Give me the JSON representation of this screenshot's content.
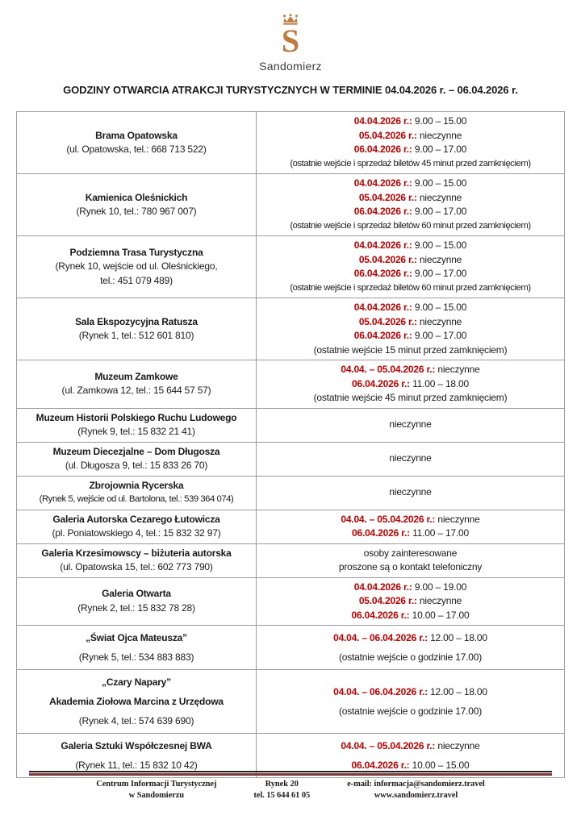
{
  "logo": {
    "letter": "S",
    "caption": "Sandomierz"
  },
  "title": "GODZINY OTWARCIA ATRAKCJI TURYSTYCZNYCH W TERMINIE 04.04.2026 r. – 06.04.2026 r.",
  "colors": {
    "red": "#C00000",
    "border": "#9C9C9C",
    "logo": "#C0793D",
    "rule": "#7E3A3A"
  },
  "table": {
    "rows": [
      {
        "left": [
          {
            "text": "Brama Opatowska",
            "bold": true
          },
          {
            "text": "(ul. Opatowska, tel.: 668 713 522)"
          }
        ],
        "right": [
          {
            "date": "04.04.2026 r.:",
            "text": "9.00 – 15.00"
          },
          {
            "date": "05.04.2026 r.:",
            "text": "nieczynne"
          },
          {
            "date": "06.04.2026 r.:",
            "text": "9.00 – 17.00"
          },
          {
            "text": "(ostatnie wejście i sprzedaż biletów 45 minut przed zamknięciem)"
          }
        ]
      },
      {
        "left": [
          {
            "text": "Kamienica Oleśnickich",
            "bold": true
          },
          {
            "text": "(Rynek 10, tel.: 780 967 007)"
          }
        ],
        "right": [
          {
            "date": "04.04.2026 r.:",
            "text": "9.00 – 15.00"
          },
          {
            "date": "05.04.2026 r.:",
            "text": "nieczynne"
          },
          {
            "date": "06.04.2026 r.:",
            "text": "9.00 – 17.00"
          },
          {
            "text": "(ostatnie wejście i sprzedaż biletów 60 minut przed zamknięciem)"
          }
        ]
      },
      {
        "left": [
          {
            "text": "Podziemna Trasa Turystyczna",
            "bold": true
          },
          {
            "text": "(Rynek 10, wejście od ul. Oleśnickiego,"
          },
          {
            "text": "tel.: 451 079 489)"
          }
        ],
        "right": [
          {
            "date": "04.04.2026 r.:",
            "text": "9.00 – 15.00"
          },
          {
            "date": "05.04.2026 r.:",
            "text": "nieczynne"
          },
          {
            "date": "06.04.2026 r.:",
            "text": "9.00 – 17.00"
          },
          {
            "text": "(ostatnie wejście i sprzedaż biletów 60 minut przed zamknięciem)"
          }
        ]
      },
      {
        "left": [
          {
            "text": "Sala Ekspozycyjna Ratusza",
            "bold": true
          },
          {
            "text": "(Rynek 1, tel.: 512 601 810)"
          }
        ],
        "right": [
          {
            "date": "04.04.2026 r.:",
            "text": "9.00 – 15.00"
          },
          {
            "date": "05.04.2026 r.:",
            "text": "nieczynne"
          },
          {
            "date": "06.04.2026 r.:",
            "text": "9.00 – 17.00"
          },
          {
            "text": "(ostatnie wejście 15 minut przed zamknięciem)"
          }
        ]
      },
      {
        "left": [
          {
            "text": "Muzeum Zamkowe",
            "bold": true
          },
          {
            "text": "(ul. Zamkowa 12, tel.: 15 644 57 57)"
          }
        ],
        "right": [
          {
            "date": "04.04. – 05.04.2026 r.:",
            "text": "nieczynne"
          },
          {
            "date": "06.04.2026 r.:",
            "text": "11.00 – 18.00"
          },
          {
            "text": "(ostatnie wejście 45 minut przed zamknięciem)"
          }
        ]
      },
      {
        "left": [
          {
            "text": "Muzeum Historii Polskiego Ruchu Ludowego",
            "bold": true
          },
          {
            "text": "(Rynek 9, tel.: 15 832 21 41)"
          }
        ],
        "right": [
          {
            "text": "nieczynne"
          }
        ]
      },
      {
        "left": [
          {
            "text": "Muzeum Diecezjalne – Dom Długosza",
            "bold": true
          },
          {
            "text": "(ul. Długosza 9, tel.: 15 833 26 70)"
          }
        ],
        "right": [
          {
            "text": "nieczynne"
          }
        ]
      },
      {
        "left": [
          {
            "text": "Zbrojownia Rycerska",
            "bold": true
          },
          {
            "text": "(Rynek 5, wejście od ul. Bartolona, tel.: 539 364 074)"
          }
        ],
        "right": [
          {
            "text": "nieczynne"
          }
        ]
      },
      {
        "left": [
          {
            "text": "Galeria Autorska Cezarego Łutowicza",
            "bold": true
          },
          {
            "text": "(pl. Poniatowskiego 4, tel.: 15 832 32 97)"
          }
        ],
        "right": [
          {
            "date": "04.04. – 05.04.2026 r.:",
            "text": "nieczynne"
          },
          {
            "date": "06.04.2026 r.:",
            "text": "11.00 – 17.00"
          }
        ]
      },
      {
        "left": [
          {
            "text": "Galeria Krzesimowscy – biżuteria autorska",
            "bold": true
          },
          {
            "text": "(ul. Opatowska 15, tel.: 602 773 790)"
          }
        ],
        "right": [
          {
            "text": "osoby zainteresowane"
          },
          {
            "text": "proszone są o kontakt telefoniczny"
          }
        ]
      },
      {
        "left": [
          {
            "text": "Galeria Otwarta",
            "bold": true
          },
          {
            "text": "(Rynek 2, tel.: 15 832 78 28)"
          }
        ],
        "right": [
          {
            "date": "04.04.2026 r.:",
            "text": "9.00 – 19.00"
          },
          {
            "date": "05.04.2026 r.:",
            "text": "nieczynne"
          },
          {
            "date": "06.04.2026 r.:",
            "text": "10.00 – 17.00"
          }
        ]
      },
      {
        "loose": true,
        "left": [
          {
            "text": "„Świat Ojca Mateusza”",
            "bold": true
          },
          {
            "text": "(Rynek 5, tel.: 534 883 883)"
          }
        ],
        "right": [
          {
            "date": "04.04. – 06.04.2026 r.:",
            "text": "12.00 – 18.00"
          },
          {
            "text": "(ostatnie wejście o godzinie 17.00)"
          }
        ]
      },
      {
        "loose": true,
        "left": [
          {
            "text": "„Czary Napary”",
            "bold": true
          },
          {
            "text": "Akademia Ziołowa Marcina z Urzędowa",
            "bold": true
          },
          {
            "text": "(Rynek 4, tel.: 574 639 690)"
          }
        ],
        "right": [
          {
            "date": "04.04. – 06.04.2026 r.:",
            "text": "12.00 – 18.00"
          },
          {
            "text": "(ostatnie wejście o godzinie 17.00)"
          }
        ]
      },
      {
        "loose": true,
        "left": [
          {
            "text": "Galeria Sztuki Współczesnej BWA",
            "bold": true
          },
          {
            "text": "(Rynek 11, tel.: 15 832 10 42)"
          }
        ],
        "right": [
          {
            "date": "04.04. – 05.04.2026 r.:",
            "text": "nieczynne"
          },
          {
            "date": "06.04.2026 r.:",
            "text": "10.00 – 15.00"
          }
        ]
      }
    ]
  },
  "footer": {
    "columns": [
      {
        "lines": [
          "Centrum Informacji Turystycznej",
          "w Sandomierzu"
        ]
      },
      {
        "lines": [
          "Rynek 20",
          "tel. 15 644 61 05"
        ]
      },
      {
        "lines": [
          "e-mail: informacja@sandomierz.travel",
          "www.sandomierz.travel"
        ]
      }
    ]
  }
}
